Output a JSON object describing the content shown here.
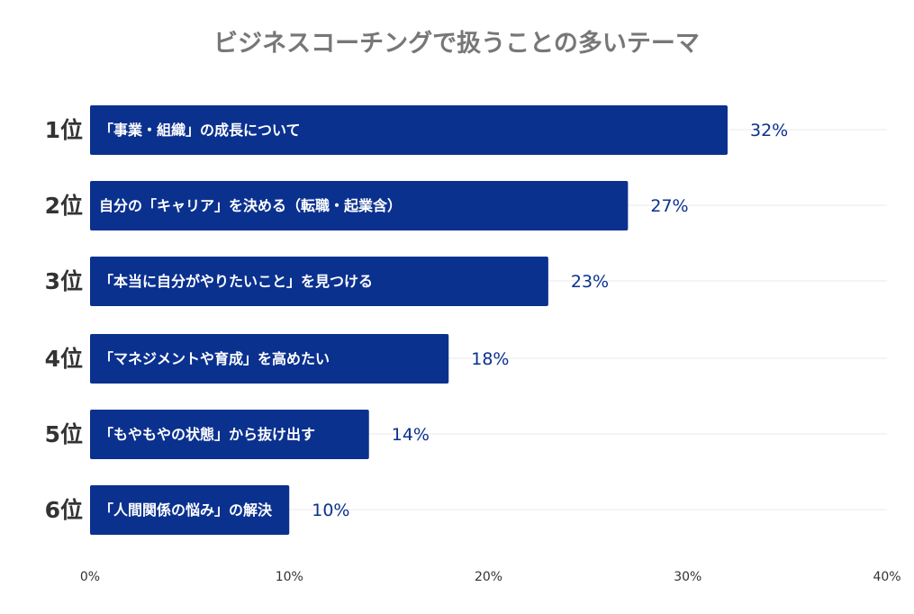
{
  "chart_data": {
    "type": "bar",
    "orientation": "horizontal",
    "title": "ビジネスコーチングで扱うことの多いテーマ",
    "categories": [
      "1位",
      "2位",
      "3位",
      "4位",
      "5位",
      "6位"
    ],
    "labels": [
      "「事業・組織」の成長について",
      "自分の「キャリア」を決める（転職・起業含）",
      "「本当に自分がやりたいこと」を見つける",
      "「マネジメントや育成」を高めたい",
      "「もやもやの状態」から抜け出す",
      "「人間関係の悩み」の解決"
    ],
    "values": [
      32,
      27,
      23,
      18,
      14,
      10
    ],
    "value_labels": [
      "32%",
      "27%",
      "23%",
      "18%",
      "14%",
      "10%"
    ],
    "xlim": [
      0,
      40
    ],
    "xticks": [
      "0%",
      "10%",
      "20%",
      "30%",
      "40%"
    ],
    "grid": true,
    "colors": {
      "bar": "#0b318f",
      "grid": "#e8e8ee"
    }
  }
}
